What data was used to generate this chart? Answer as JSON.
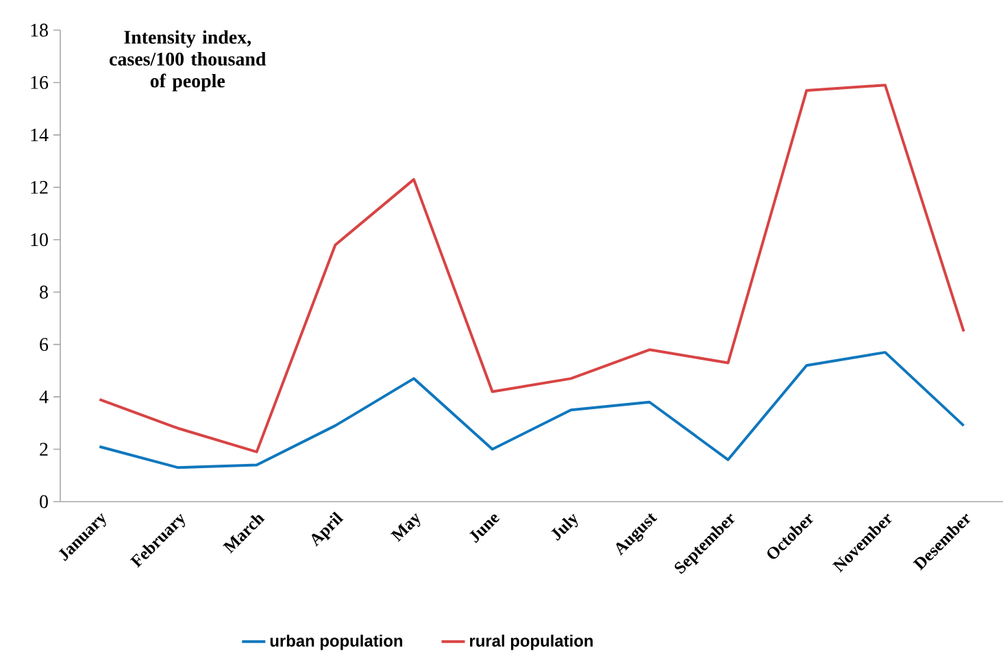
{
  "chart_data": {
    "type": "line",
    "ylabel": "Intensity index, cases/100 thousand of people",
    "categories": [
      "January",
      "February",
      "March",
      "April",
      "May",
      "June",
      "July",
      "August",
      "September",
      "October",
      "November",
      "Desember"
    ],
    "series": [
      {
        "name": "urban population",
        "color": "#1077bd",
        "values": [
          2.1,
          1.3,
          1.4,
          2.9,
          4.7,
          2.0,
          3.5,
          3.8,
          1.6,
          5.2,
          5.7,
          2.9
        ]
      },
      {
        "name": "rural population",
        "color": "#d84444",
        "values": [
          3.9,
          2.8,
          1.9,
          9.8,
          12.3,
          4.2,
          4.7,
          5.8,
          5.3,
          15.7,
          15.9,
          6.5
        ]
      }
    ],
    "ylim": [
      0,
      18
    ],
    "yticks": [
      0,
      2,
      4,
      6,
      8,
      10,
      12,
      14,
      16,
      18
    ],
    "legend": "bottom",
    "marker": "none",
    "line_style": "solid"
  }
}
